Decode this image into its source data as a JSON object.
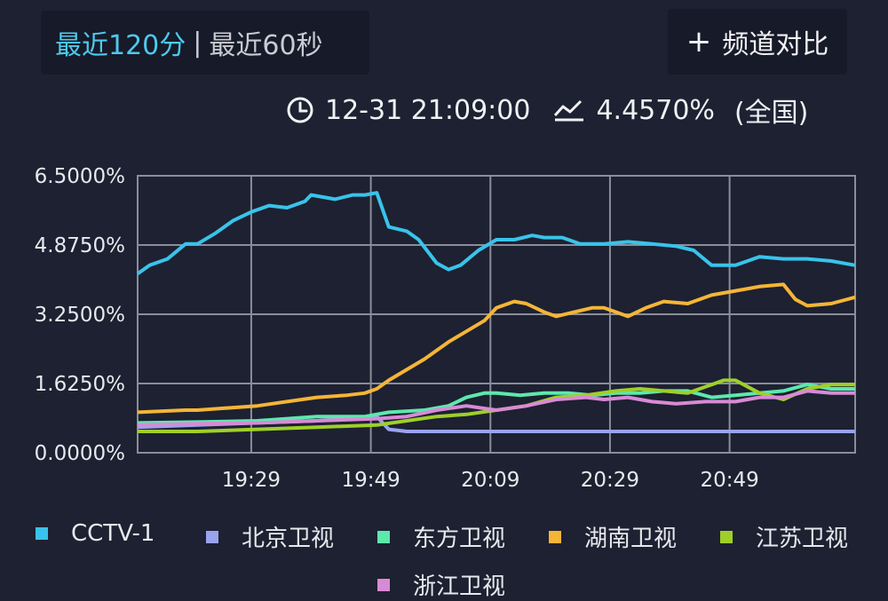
{
  "header": {
    "range_active": "最近120分",
    "separator": "|",
    "range_inactive": "最近60秒",
    "compare_plus": "+",
    "compare_label": "频道对比"
  },
  "status": {
    "clock_icon": "clock-icon",
    "time": "12-31 21:09:00",
    "trend_icon": "trend-icon",
    "value": "4.4570%",
    "region": "(全国)"
  },
  "chart_data": {
    "type": "line",
    "title": "",
    "xlabel": "",
    "ylabel": "",
    "x_range_minutes": [
      0,
      120
    ],
    "x_start": "19:10",
    "x_ticks": [
      {
        "label": "19:29",
        "x": 19
      },
      {
        "label": "19:49",
        "x": 39
      },
      {
        "label": "20:09",
        "x": 59
      },
      {
        "label": "20:29",
        "x": 79
      },
      {
        "label": "20:49",
        "x": 99
      }
    ],
    "y_ticks": [
      "6.5000%",
      "4.8750%",
      "3.2500%",
      "1.6250%",
      "0.0000%"
    ],
    "ylim": [
      0,
      6.5
    ],
    "grid": true,
    "legend_position": "bottom",
    "series": [
      {
        "name": "CCTV-1",
        "color": "#39c3ea",
        "points": [
          [
            0,
            4.2
          ],
          [
            2,
            4.4
          ],
          [
            5,
            4.55
          ],
          [
            8,
            4.9
          ],
          [
            10,
            4.9
          ],
          [
            13,
            5.15
          ],
          [
            16,
            5.45
          ],
          [
            19,
            5.65
          ],
          [
            22,
            5.8
          ],
          [
            25,
            5.75
          ],
          [
            28,
            5.9
          ],
          [
            29,
            6.05
          ],
          [
            33,
            5.95
          ],
          [
            36,
            6.05
          ],
          [
            38,
            6.05
          ],
          [
            40,
            6.1
          ],
          [
            42,
            5.3
          ],
          [
            45,
            5.2
          ],
          [
            47,
            5.0
          ],
          [
            50,
            4.45
          ],
          [
            52,
            4.3
          ],
          [
            54,
            4.4
          ],
          [
            57,
            4.75
          ],
          [
            60,
            5.0
          ],
          [
            63,
            5.0
          ],
          [
            66,
            5.1
          ],
          [
            68,
            5.05
          ],
          [
            71,
            5.05
          ],
          [
            74,
            4.9
          ],
          [
            78,
            4.9
          ],
          [
            82,
            4.95
          ],
          [
            86,
            4.9
          ],
          [
            90,
            4.85
          ],
          [
            93,
            4.75
          ],
          [
            96,
            4.4
          ],
          [
            100,
            4.4
          ],
          [
            104,
            4.6
          ],
          [
            108,
            4.55
          ],
          [
            112,
            4.55
          ],
          [
            116,
            4.5
          ],
          [
            120,
            4.4
          ]
        ]
      },
      {
        "name": "北京卫视",
        "color": "#9aa3ee",
        "points": [
          [
            0,
            0.6
          ],
          [
            10,
            0.65
          ],
          [
            20,
            0.7
          ],
          [
            30,
            0.75
          ],
          [
            40,
            0.85
          ],
          [
            42,
            0.55
          ],
          [
            45,
            0.5
          ],
          [
            60,
            0.5
          ],
          [
            80,
            0.5
          ],
          [
            100,
            0.5
          ],
          [
            120,
            0.5
          ]
        ]
      },
      {
        "name": "东方卫视",
        "color": "#5de8ae",
        "points": [
          [
            0,
            0.7
          ],
          [
            10,
            0.72
          ],
          [
            20,
            0.75
          ],
          [
            30,
            0.85
          ],
          [
            38,
            0.85
          ],
          [
            42,
            0.95
          ],
          [
            48,
            1.0
          ],
          [
            52,
            1.1
          ],
          [
            55,
            1.3
          ],
          [
            58,
            1.4
          ],
          [
            60,
            1.4
          ],
          [
            64,
            1.35
          ],
          [
            68,
            1.4
          ],
          [
            72,
            1.4
          ],
          [
            76,
            1.35
          ],
          [
            80,
            1.4
          ],
          [
            84,
            1.4
          ],
          [
            88,
            1.45
          ],
          [
            92,
            1.45
          ],
          [
            96,
            1.3
          ],
          [
            100,
            1.35
          ],
          [
            104,
            1.4
          ],
          [
            108,
            1.45
          ],
          [
            112,
            1.6
          ],
          [
            116,
            1.5
          ],
          [
            120,
            1.5
          ]
        ]
      },
      {
        "name": "湖南卫视",
        "color": "#f5b536",
        "points": [
          [
            0,
            0.95
          ],
          [
            8,
            1.0
          ],
          [
            10,
            1.0
          ],
          [
            15,
            1.05
          ],
          [
            20,
            1.1
          ],
          [
            25,
            1.2
          ],
          [
            30,
            1.3
          ],
          [
            35,
            1.35
          ],
          [
            38,
            1.4
          ],
          [
            40,
            1.5
          ],
          [
            42,
            1.7
          ],
          [
            45,
            1.95
          ],
          [
            48,
            2.2
          ],
          [
            50,
            2.4
          ],
          [
            52,
            2.6
          ],
          [
            55,
            2.85
          ],
          [
            58,
            3.1
          ],
          [
            60,
            3.4
          ],
          [
            63,
            3.55
          ],
          [
            65,
            3.5
          ],
          [
            68,
            3.3
          ],
          [
            70,
            3.2
          ],
          [
            73,
            3.3
          ],
          [
            76,
            3.4
          ],
          [
            78,
            3.4
          ],
          [
            82,
            3.2
          ],
          [
            85,
            3.4
          ],
          [
            88,
            3.55
          ],
          [
            92,
            3.5
          ],
          [
            96,
            3.7
          ],
          [
            100,
            3.8
          ],
          [
            104,
            3.9
          ],
          [
            108,
            3.95
          ],
          [
            110,
            3.6
          ],
          [
            112,
            3.45
          ],
          [
            116,
            3.5
          ],
          [
            120,
            3.65
          ]
        ]
      },
      {
        "name": "江苏卫视",
        "color": "#9fcf2a",
        "points": [
          [
            0,
            0.5
          ],
          [
            10,
            0.5
          ],
          [
            20,
            0.55
          ],
          [
            30,
            0.6
          ],
          [
            40,
            0.65
          ],
          [
            45,
            0.75
          ],
          [
            50,
            0.85
          ],
          [
            55,
            0.9
          ],
          [
            60,
            1.0
          ],
          [
            65,
            1.1
          ],
          [
            70,
            1.3
          ],
          [
            75,
            1.35
          ],
          [
            80,
            1.45
          ],
          [
            84,
            1.5
          ],
          [
            88,
            1.45
          ],
          [
            92,
            1.4
          ],
          [
            96,
            1.6
          ],
          [
            98,
            1.7
          ],
          [
            100,
            1.7
          ],
          [
            104,
            1.4
          ],
          [
            108,
            1.25
          ],
          [
            112,
            1.5
          ],
          [
            116,
            1.6
          ],
          [
            120,
            1.6
          ]
        ]
      },
      {
        "name": "浙江卫视",
        "color": "#d98ad6",
        "points": [
          [
            0,
            0.65
          ],
          [
            10,
            0.68
          ],
          [
            20,
            0.7
          ],
          [
            30,
            0.75
          ],
          [
            40,
            0.8
          ],
          [
            45,
            0.85
          ],
          [
            50,
            1.0
          ],
          [
            55,
            1.1
          ],
          [
            60,
            1.0
          ],
          [
            65,
            1.1
          ],
          [
            70,
            1.25
          ],
          [
            75,
            1.3
          ],
          [
            78,
            1.25
          ],
          [
            82,
            1.3
          ],
          [
            86,
            1.2
          ],
          [
            90,
            1.15
          ],
          [
            95,
            1.2
          ],
          [
            100,
            1.2
          ],
          [
            104,
            1.3
          ],
          [
            108,
            1.3
          ],
          [
            112,
            1.45
          ],
          [
            116,
            1.4
          ],
          [
            120,
            1.4
          ]
        ]
      }
    ]
  }
}
